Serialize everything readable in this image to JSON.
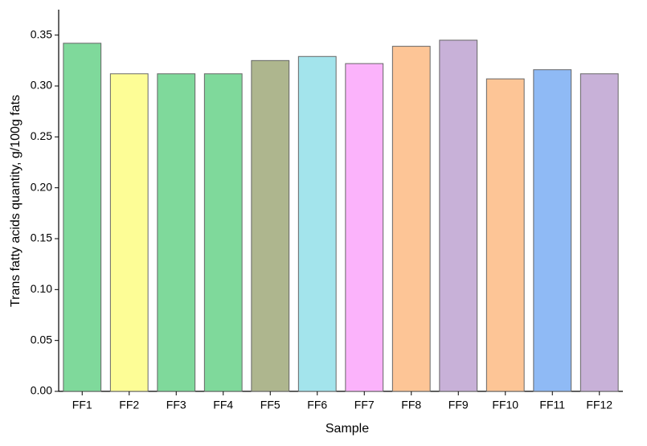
{
  "chart_data": {
    "type": "bar",
    "x_label": "Sample",
    "y_label": "Trans fatty acids quantity, g/100g fats",
    "categories": [
      "FF1",
      "FF2",
      "FF3",
      "FF4",
      "FF5",
      "FF6",
      "FF7",
      "FF8",
      "FF9",
      "FF10",
      "FF11",
      "FF12"
    ],
    "values": [
      0.342,
      0.312,
      0.312,
      0.312,
      0.325,
      0.329,
      0.322,
      0.339,
      0.345,
      0.307,
      0.316,
      0.312
    ],
    "colors": [
      "#7fd99b",
      "#fdfd96",
      "#7fd99b",
      "#7fd99b",
      "#aeb68e",
      "#a3e4ec",
      "#fbb3fb",
      "#fdc596",
      "#c8b1d8",
      "#fdc596",
      "#8fbaf5",
      "#c8b1d8"
    ],
    "ylim": [
      0,
      0.375
    ],
    "yticks": [
      {
        "value": 0,
        "label": "0.00"
      },
      {
        "value": 0.05,
        "label": "0.05"
      },
      {
        "value": 0.1,
        "label": "0.10"
      },
      {
        "value": 0.15,
        "label": "0.15"
      },
      {
        "value": 0.2,
        "label": "0.20"
      },
      {
        "value": 0.25,
        "label": "0.25"
      },
      {
        "value": 0.3,
        "label": "0.30"
      },
      {
        "value": 0.35,
        "label": "0.35"
      }
    ],
    "grid": false
  }
}
